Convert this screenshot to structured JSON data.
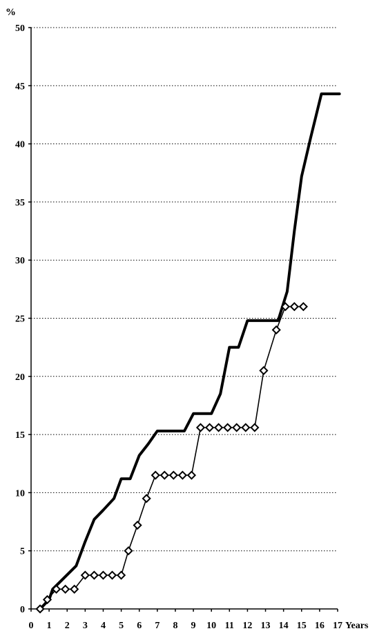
{
  "chart_data": {
    "type": "line",
    "title": "",
    "ylabel": "%",
    "xlabel": "Years",
    "xlim": [
      0,
      17
    ],
    "ylim": [
      0,
      50
    ],
    "x_ticks": [
      0,
      1,
      2,
      3,
      4,
      5,
      6,
      7,
      8,
      9,
      10,
      11,
      12,
      13,
      14,
      15,
      16,
      17
    ],
    "y_ticks": [
      0,
      5,
      10,
      15,
      20,
      25,
      30,
      35,
      40,
      45,
      50
    ],
    "grid": "horizontal dotted",
    "legend": "none",
    "series": [
      {
        "style": "thick-line",
        "points": [
          [
            0.5,
            0
          ],
          [
            1.0,
            0.8
          ],
          [
            1.2,
            1.7
          ],
          [
            2.5,
            3.7
          ],
          [
            3.0,
            5.8
          ],
          [
            3.5,
            7.7
          ],
          [
            4.0,
            8.5
          ],
          [
            4.6,
            9.5
          ],
          [
            5.0,
            11.2
          ],
          [
            5.5,
            11.2
          ],
          [
            6.0,
            13.2
          ],
          [
            6.5,
            14.2
          ],
          [
            7.0,
            15.3
          ],
          [
            8.5,
            15.3
          ],
          [
            9.0,
            16.8
          ],
          [
            10.0,
            16.8
          ],
          [
            10.5,
            18.5
          ],
          [
            11.0,
            22.5
          ],
          [
            11.5,
            22.5
          ],
          [
            12.0,
            24.8
          ],
          [
            13.7,
            24.8
          ],
          [
            14.2,
            27.3
          ],
          [
            14.6,
            32.5
          ],
          [
            15.0,
            37.2
          ],
          [
            15.5,
            40.5
          ],
          [
            16.1,
            44.3
          ],
          [
            17.1,
            44.3
          ]
        ]
      },
      {
        "style": "thin-line-diamond",
        "points": [
          [
            0.5,
            0
          ],
          [
            0.9,
            0.8
          ],
          [
            1.4,
            1.7
          ],
          [
            1.9,
            1.7
          ],
          [
            2.4,
            1.7
          ],
          [
            3.0,
            2.9
          ],
          [
            3.5,
            2.9
          ],
          [
            4.0,
            2.9
          ],
          [
            4.5,
            2.9
          ],
          [
            5.0,
            2.9
          ],
          [
            5.4,
            5.0
          ],
          [
            5.9,
            7.2
          ],
          [
            6.4,
            9.5
          ],
          [
            6.9,
            11.5
          ],
          [
            7.4,
            11.5
          ],
          [
            7.9,
            11.5
          ],
          [
            8.4,
            11.5
          ],
          [
            8.9,
            11.5
          ],
          [
            9.4,
            15.6
          ],
          [
            9.9,
            15.6
          ],
          [
            10.4,
            15.6
          ],
          [
            10.9,
            15.6
          ],
          [
            11.4,
            15.6
          ],
          [
            11.9,
            15.6
          ],
          [
            12.4,
            15.6
          ],
          [
            12.9,
            20.5
          ],
          [
            13.6,
            24.0
          ],
          [
            14.1,
            26.0
          ],
          [
            14.6,
            26.0
          ],
          [
            15.1,
            26.0
          ]
        ]
      }
    ]
  }
}
